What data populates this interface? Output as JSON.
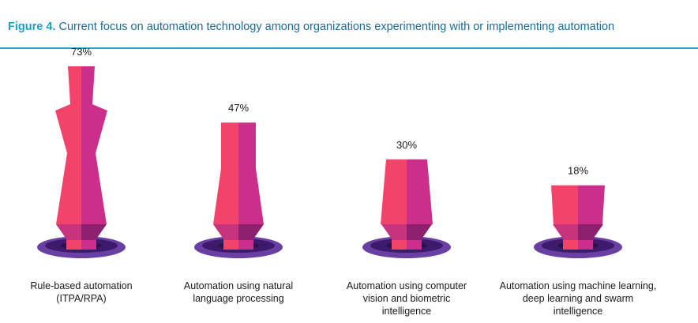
{
  "figure": {
    "number": "Figure 4.",
    "title": "Current focus on automation technology among organizations experimenting with or implementing automation"
  },
  "colors": {
    "left_half": "#f2436a",
    "right_half": "#cc2e8c",
    "collar_left": "#c8337d",
    "collar_right": "#8e2070",
    "base_top": "#6a3fa3",
    "base_ring": "#3d1a6b",
    "base_center": "#2a124d",
    "rule": "#1fa7c9",
    "title": "#1b6b96"
  },
  "chart_data": {
    "type": "bar",
    "categories": [
      [
        "Rule-based automation",
        "(ITPA/RPA)"
      ],
      [
        "Automation using natural",
        "language processing"
      ],
      [
        "Automation using computer",
        "vision and biometric",
        "intelligence"
      ],
      [
        "Automation using machine learning,",
        "deep learning and swarm",
        "intelligence"
      ]
    ],
    "values": [
      73,
      47,
      30,
      18
    ],
    "value_labels": [
      "73%",
      "47%",
      "30%",
      "18%"
    ],
    "ylim": [
      0,
      73
    ]
  }
}
